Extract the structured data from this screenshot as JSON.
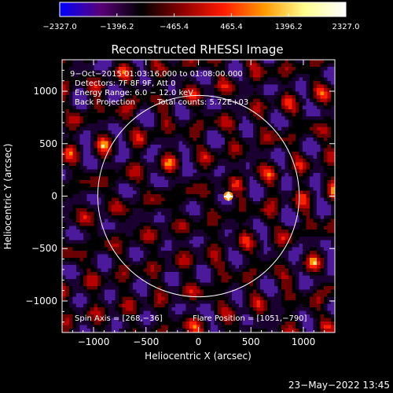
{
  "chart_data": {
    "type": "heatmap",
    "title": "Reconstructed RHESSI Image",
    "xlabel": "Heliocentric X (arcsec)",
    "ylabel": "Heliocentric Y (arcsec)",
    "xlim": [
      -1300,
      1300
    ],
    "ylim": [
      -1300,
      1300
    ],
    "x_ticks": [
      -1000,
      -500,
      0,
      500,
      1000
    ],
    "y_ticks": [
      -1000,
      -500,
      0,
      500,
      1000
    ],
    "x_tick_labels": [
      "−1000",
      "−500",
      "0",
      "500",
      "1000"
    ],
    "y_tick_labels": [
      "−1000",
      "−500",
      "0",
      "500",
      "1000"
    ],
    "colorbar": {
      "range": [
        -2327.0,
        2327.0
      ],
      "tick_labels": [
        "−2327.0",
        "−1396.2",
        "−465.4",
        "465.4",
        "1396.2",
        "2327.0"
      ],
      "stops": [
        "#0000ff",
        "#5a0078",
        "#000000",
        "#8c0000",
        "#ff1a00",
        "#ff9a00",
        "#ffff90",
        "#ffffff"
      ]
    },
    "solar_limb": {
      "center": [
        0,
        0
      ],
      "radius_arcsec": 960,
      "color": "#ffffff"
    },
    "peak_source": {
      "x": 285,
      "y": 0,
      "label": "+"
    },
    "annotations": {
      "time_range": "9−Oct−2015 01:03:16.000 to 01:08:00.000",
      "detectors": "Detectors: 7F 8F 9F, Att 0",
      "energy_range": "Energy Range: 6.0 − 12.0 keV",
      "method": "Back Projection",
      "total_counts": "Total counts: 5.72E+03",
      "spin_axis": "Spin Axis = [268,−36]",
      "flare_position": "Flare Position = [1051,−790]"
    }
  },
  "footer": {
    "date_stamp": "23−May−2022 13:45"
  }
}
